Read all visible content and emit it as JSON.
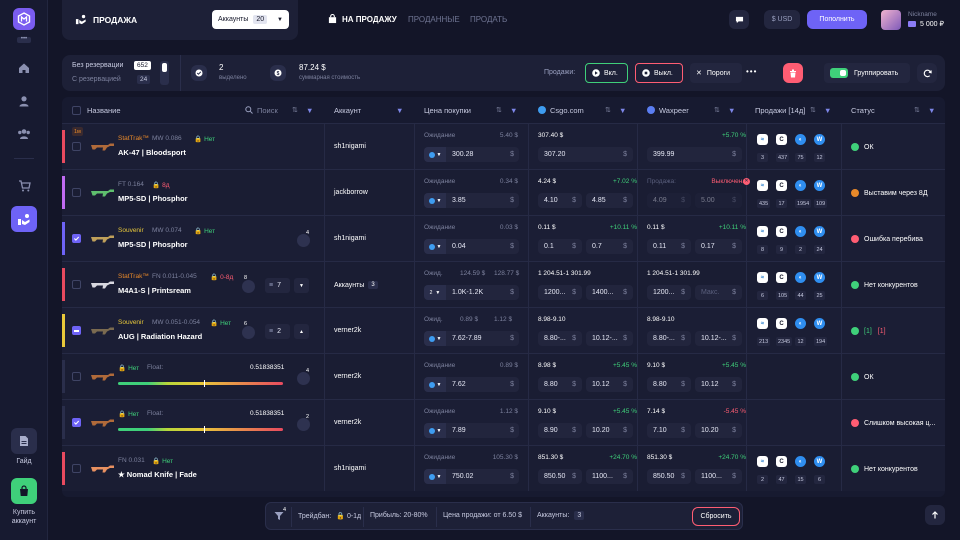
{
  "sidebar": {
    "guide": "Гайд",
    "buy": [
      "Купить",
      "аккаунт"
    ]
  },
  "top": {
    "sell_title": "ПРОДАЖА",
    "accounts_label": "Аккаунты",
    "accounts_count": "20",
    "tabs": [
      "НА ПРОДАЖУ",
      "ПРОДАННЫЕ",
      "ПРОДАТЬ"
    ],
    "currency": "$ USD",
    "topup": "Пополнить",
    "nickname": "Nickname",
    "balance": "5 000 ₽"
  },
  "stats": {
    "no_reserve": "Без резервации",
    "no_reserve_count": "652",
    "with_reserve": "С резервацией",
    "with_reserve_count": "24",
    "selected_count": "2",
    "selected_label": "выделено",
    "total_value": "87.24 $",
    "total_label": "суммарная стоимость",
    "sales_label": "Продажи:",
    "on": "Вкл.",
    "off": "Выкл.",
    "thresholds": "Пороги",
    "group": "Группировать"
  },
  "columns": {
    "name": "Название",
    "search": "Поиск",
    "account": "Аккаунт",
    "buy_price": "Цена покупки",
    "csgo": "Csgo.com",
    "waxpeer": "Waxpeer",
    "sales": "Продажи [14д]",
    "status": "Статус"
  },
  "rows": [
    {
      "tag": "1м",
      "prefix": "StatTrak™",
      "wear": "MW 0.086",
      "lock": "Нет",
      "name": "AK-47 | Bloodsport",
      "account": "sh1nigami",
      "wait": "Ожидание",
      "wait_val": "5.40 $",
      "buy": "300.28",
      "c_top": "307.40 $",
      "c_pct": "",
      "c_in1": "307.20",
      "c_in2": "",
      "w_top": "",
      "w_pct": "+5.70 %",
      "w_in1": "399.99",
      "w_in2": "",
      "sales": [
        "3",
        "437",
        "75",
        "12"
      ],
      "status": "ОК"
    },
    {
      "tag": "",
      "prefix": "FT 0.164",
      "wear": "",
      "lock": "8д",
      "name": "MP5-SD | Phosphor",
      "account": "jackborrow",
      "wait": "Ожидание",
      "wait_val": "0.34 $",
      "buy": "3.85",
      "c_top": "4.24 $",
      "c_pct": "+7.02 %",
      "c_in1": "4.10",
      "c_in2": "4.85",
      "w_top": "Продажа:",
      "w_pct": "Выключена",
      "w_in1": "4.09",
      "w_in2": "5.00",
      "sales": [
        "435",
        "17",
        "1954",
        "109"
      ],
      "status": "Выставим через 8Д"
    },
    {
      "tag": "",
      "prefix": "Souvenir",
      "wear": "MW 0.074",
      "lock": "Нет",
      "name": "MP5-SD | Phosphor",
      "account": "sh1nigami",
      "wait": "Ожидание",
      "wait_val": "0.03 $",
      "buy": "0.04",
      "c_top": "0.11 $",
      "c_pct": "+10.11 %",
      "c_in1": "0.1",
      "c_in2": "0.7",
      "w_top": "0.11 $",
      "w_pct": "+10.11 %",
      "w_in1": "0.11",
      "w_in2": "0.17",
      "sales": [
        "8",
        "9",
        "2",
        "24"
      ],
      "status": "Ошибка перебива",
      "badge": "4"
    },
    {
      "tag": "",
      "prefix": "StatTrak™",
      "wear": "FN 0.011-0.045",
      "lock": "0-8д",
      "name": "M4A1-S | Printsream",
      "account": "Аккаунты",
      "acc_count": "3",
      "wait": "Ожид.",
      "wait_val": "124.59 $",
      "wait_val2": "128.77 $",
      "buy": "1.0K-1.2K",
      "qty": "2",
      "c_top": "1 204.51-1 301.99",
      "c_pct": "",
      "c_in1": "1200...",
      "c_in2": "1400...",
      "w_top": "1 204.51-1 301.99",
      "w_pct": "",
      "w_in1": "1200...",
      "w_in2": "Макс.",
      "sales": [
        "6",
        "105",
        "44",
        "25"
      ],
      "status": "Нет конкурентов",
      "badge": "8",
      "stack": "7"
    },
    {
      "tag": "",
      "prefix": "Souvenir",
      "wear": "MW 0.051-0.054",
      "lock": "Нет",
      "name": "AUG | Radiation Hazard",
      "account": "verner2k",
      "wait": "Ожид.",
      "wait_val": "0.89 $",
      "wait_val2": "1.12 $",
      "buy": "7.62-7.89",
      "c_top": "8.98-9.10",
      "c_pct": "",
      "c_in1": "8.80-...",
      "c_in2": "10.12-...",
      "w_top": "8.98-9.10",
      "w_pct": "",
      "w_in1": "8.80-...",
      "w_in2": "10.12-...",
      "sales": [
        "213",
        "2345",
        "12",
        "194"
      ],
      "status": "[1]",
      "status2": "[1]",
      "badge": "6",
      "stack": "2"
    },
    {
      "tag": "",
      "prefix": "",
      "wear": "",
      "lock": "Нет",
      "float_label": "Float:",
      "float": "0.51838351",
      "name": "",
      "account": "verner2k",
      "wait": "Ожидание",
      "wait_val": "0.89 $",
      "buy": "7.62",
      "c_top": "8.98 $",
      "c_pct": "+5.45 %",
      "c_in1": "8.80",
      "c_in2": "10.12",
      "w_top": "9.10 $",
      "w_pct": "+5.45 %",
      "w_in1": "8.80",
      "w_in2": "10.12",
      "sales": [],
      "status": "ОК",
      "badge": "4",
      "float_pos": 0.52
    },
    {
      "tag": "",
      "prefix": "",
      "wear": "",
      "lock": "Нет",
      "float_label": "Float:",
      "float": "0.51838351",
      "name": "",
      "account": "verner2k",
      "wait": "Ожидание",
      "wait_val": "1.12 $",
      "buy": "7.89",
      "c_top": "9.10 $",
      "c_pct": "+5.45 %",
      "c_in1": "8.90",
      "c_in2": "10.20",
      "w_top": "7.14 $",
      "w_pct": "-5.45 %",
      "w_in1": "7.10",
      "w_in2": "10.20",
      "sales": [],
      "status": "Слишком высокая ц...",
      "badge": "2",
      "float_pos": 0.52
    },
    {
      "tag": "",
      "prefix": "FN 0.031",
      "wear": "",
      "lock": "Нет",
      "name": "★ Nomad Knife | Fade",
      "account": "sh1nigami",
      "wait": "Ожидание",
      "wait_val": "105.30 $",
      "buy": "750.02",
      "c_top": "851.30 $",
      "c_pct": "+24.70 %",
      "c_in1": "850.50",
      "c_in2": "1100...",
      "w_top": "851.30 $",
      "w_pct": "+24.70 %",
      "w_in1": "850.50",
      "w_in2": "1100...",
      "sales": [
        "2",
        "47",
        "15",
        "6"
      ],
      "status": "Нет конкурентов"
    }
  ],
  "bottom": {
    "filter_badge": "4",
    "tradeban_label": "Трейдбан:",
    "tradeban": "0-1д",
    "profit": "Прибыль:  20-80%",
    "sale_price": "Цена продажи: от 6.50 $",
    "accounts_label": "Аккаунты:",
    "accounts": "3",
    "reset": "Сбросить"
  },
  "colors": {
    "accent": "#6e63f6",
    "green": "#3fd07a",
    "red": "#ff5d73",
    "orange": "#e8892a"
  }
}
